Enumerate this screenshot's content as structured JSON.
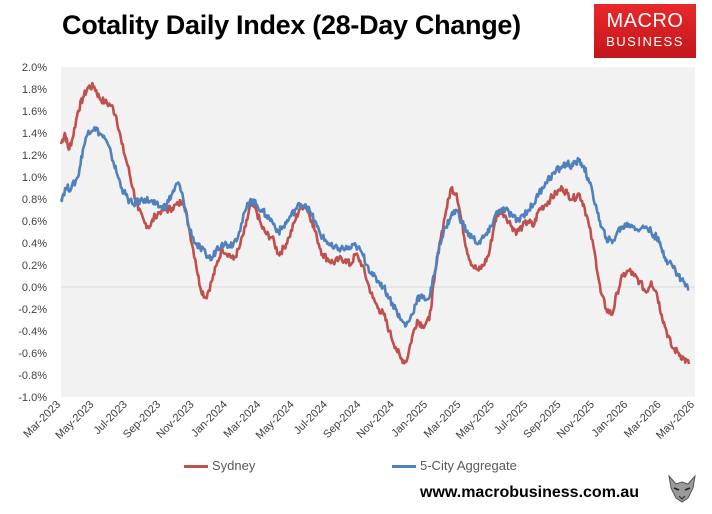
{
  "header": {
    "title": "Cotality Daily Index (28-Day Change)",
    "logo_line1": "MACRO",
    "logo_line2": "BUSINESS"
  },
  "footer": {
    "website": "www.macrobusiness.com.au",
    "mascot_icon": "wolf-icon"
  },
  "colors": {
    "sydney": "#c0504d",
    "aggregate": "#4f81bd",
    "plot_bg": "#f2f2f2",
    "logo": "#d81f26"
  },
  "chart_data": {
    "type": "line",
    "title": "Cotality Daily Index (28-Day Change)",
    "xlabel": "",
    "ylabel": "",
    "x_range": [
      "2023-03-01",
      "2026-05-01"
    ],
    "xticks": [
      "Mar-2023",
      "May-2023",
      "Jul-2023",
      "Sep-2023",
      "Nov-2023",
      "Jan-2024",
      "Mar-2024",
      "May-2024",
      "Jul-2024",
      "Sep-2024",
      "Nov-2024",
      "Jan-2025",
      "Mar-2025",
      "May-2025",
      "Jul-2025",
      "Sep-2025",
      "Nov-2025",
      "Jan-2026",
      "Mar-2026",
      "May-2026"
    ],
    "ylim": [
      -1.0,
      2.0
    ],
    "yticks": [
      "2.0%",
      "1.8%",
      "1.6%",
      "1.4%",
      "1.2%",
      "1.0%",
      "0.8%",
      "0.6%",
      "0.4%",
      "0.2%",
      "0.0%",
      "-0.2%",
      "-0.4%",
      "-0.6%",
      "-0.8%",
      "-1.0%"
    ],
    "y_unit": "%",
    "grid": false,
    "legend_position": "bottom",
    "series": [
      {
        "name": "Sydney",
        "color": "#c0504d",
        "points": [
          [
            "2023-03-01",
            1.3
          ],
          [
            "2023-03-08",
            1.4
          ],
          [
            "2023-03-15",
            1.25
          ],
          [
            "2023-03-22",
            1.35
          ],
          [
            "2023-04-01",
            1.6
          ],
          [
            "2023-04-10",
            1.72
          ],
          [
            "2023-04-20",
            1.82
          ],
          [
            "2023-05-01",
            1.82
          ],
          [
            "2023-05-10",
            1.72
          ],
          [
            "2023-05-20",
            1.68
          ],
          [
            "2023-06-01",
            1.65
          ],
          [
            "2023-06-10",
            1.55
          ],
          [
            "2023-06-20",
            1.3
          ],
          [
            "2023-07-01",
            1.1
          ],
          [
            "2023-07-10",
            0.9
          ],
          [
            "2023-07-20",
            0.7
          ],
          [
            "2023-08-01",
            0.58
          ],
          [
            "2023-08-10",
            0.55
          ],
          [
            "2023-08-20",
            0.65
          ],
          [
            "2023-09-01",
            0.7
          ],
          [
            "2023-09-10",
            0.7
          ],
          [
            "2023-09-20",
            0.72
          ],
          [
            "2023-10-01",
            0.75
          ],
          [
            "2023-10-10",
            0.8
          ],
          [
            "2023-10-20",
            0.55
          ],
          [
            "2023-11-01",
            0.25
          ],
          [
            "2023-11-10",
            0.0
          ],
          [
            "2023-11-20",
            -0.1
          ],
          [
            "2023-12-01",
            0.05
          ],
          [
            "2023-12-10",
            0.2
          ],
          [
            "2023-12-20",
            0.35
          ],
          [
            "2024-01-01",
            0.3
          ],
          [
            "2024-01-10",
            0.25
          ],
          [
            "2024-01-20",
            0.35
          ],
          [
            "2024-02-01",
            0.55
          ],
          [
            "2024-02-10",
            0.75
          ],
          [
            "2024-02-20",
            0.7
          ],
          [
            "2024-03-01",
            0.55
          ],
          [
            "2024-03-10",
            0.48
          ],
          [
            "2024-03-20",
            0.45
          ],
          [
            "2024-04-01",
            0.3
          ],
          [
            "2024-04-10",
            0.35
          ],
          [
            "2024-04-20",
            0.45
          ],
          [
            "2024-05-01",
            0.6
          ],
          [
            "2024-05-10",
            0.72
          ],
          [
            "2024-05-20",
            0.75
          ],
          [
            "2024-06-01",
            0.6
          ],
          [
            "2024-06-10",
            0.45
          ],
          [
            "2024-06-20",
            0.3
          ],
          [
            "2024-07-01",
            0.25
          ],
          [
            "2024-07-10",
            0.22
          ],
          [
            "2024-07-20",
            0.25
          ],
          [
            "2024-08-01",
            0.25
          ],
          [
            "2024-08-10",
            0.2
          ],
          [
            "2024-08-20",
            0.3
          ],
          [
            "2024-09-01",
            0.2
          ],
          [
            "2024-09-10",
            0.05
          ],
          [
            "2024-09-20",
            -0.1
          ],
          [
            "2024-10-01",
            -0.2
          ],
          [
            "2024-10-10",
            -0.25
          ],
          [
            "2024-10-20",
            -0.4
          ],
          [
            "2024-11-01",
            -0.55
          ],
          [
            "2024-11-10",
            -0.65
          ],
          [
            "2024-11-20",
            -0.68
          ],
          [
            "2024-12-01",
            -0.45
          ],
          [
            "2024-12-10",
            -0.3
          ],
          [
            "2024-12-20",
            -0.35
          ],
          [
            "2025-01-01",
            -0.3
          ],
          [
            "2025-01-10",
            0.05
          ],
          [
            "2025-01-20",
            0.4
          ],
          [
            "2025-02-01",
            0.7
          ],
          [
            "2025-02-10",
            0.9
          ],
          [
            "2025-02-20",
            0.85
          ],
          [
            "2025-03-01",
            0.6
          ],
          [
            "2025-03-10",
            0.35
          ],
          [
            "2025-03-20",
            0.2
          ],
          [
            "2025-04-01",
            0.15
          ],
          [
            "2025-04-10",
            0.2
          ],
          [
            "2025-04-20",
            0.3
          ],
          [
            "2025-05-01",
            0.6
          ],
          [
            "2025-05-10",
            0.7
          ],
          [
            "2025-05-20",
            0.65
          ],
          [
            "2025-06-01",
            0.55
          ],
          [
            "2025-06-10",
            0.5
          ],
          [
            "2025-06-20",
            0.55
          ],
          [
            "2025-07-01",
            0.6
          ],
          [
            "2025-07-10",
            0.55
          ],
          [
            "2025-07-20",
            0.7
          ],
          [
            "2025-08-01",
            0.75
          ],
          [
            "2025-08-10",
            0.8
          ],
          [
            "2025-08-20",
            0.85
          ],
          [
            "2025-09-01",
            0.9
          ],
          [
            "2025-09-10",
            0.85
          ],
          [
            "2025-09-20",
            0.8
          ],
          [
            "2025-10-01",
            0.85
          ],
          [
            "2025-10-10",
            0.75
          ],
          [
            "2025-10-20",
            0.55
          ],
          [
            "2025-11-01",
            0.25
          ],
          [
            "2025-11-10",
            -0.05
          ],
          [
            "2025-11-20",
            -0.2
          ],
          [
            "2025-12-01",
            -0.25
          ],
          [
            "2025-12-10",
            -0.05
          ],
          [
            "2025-12-20",
            0.1
          ],
          [
            "2026-01-01",
            0.15
          ],
          [
            "2026-01-10",
            0.1
          ],
          [
            "2026-01-20",
            0.05
          ],
          [
            "2026-02-01",
            -0.05
          ],
          [
            "2026-02-10",
            0.05
          ],
          [
            "2026-02-20",
            -0.05
          ],
          [
            "2026-03-01",
            -0.25
          ],
          [
            "2026-03-10",
            -0.4
          ],
          [
            "2026-03-20",
            -0.55
          ],
          [
            "2026-04-01",
            -0.6
          ],
          [
            "2026-04-10",
            -0.65
          ],
          [
            "2026-04-20",
            -0.7
          ]
        ]
      },
      {
        "name": "5-City Aggregate",
        "color": "#4f81bd",
        "points": [
          [
            "2023-03-01",
            0.8
          ],
          [
            "2023-03-10",
            0.9
          ],
          [
            "2023-03-20",
            0.9
          ],
          [
            "2023-04-01",
            1.0
          ],
          [
            "2023-04-10",
            1.25
          ],
          [
            "2023-04-20",
            1.42
          ],
          [
            "2023-05-01",
            1.45
          ],
          [
            "2023-05-10",
            1.4
          ],
          [
            "2023-05-20",
            1.35
          ],
          [
            "2023-06-01",
            1.2
          ],
          [
            "2023-06-10",
            1.05
          ],
          [
            "2023-06-20",
            0.9
          ],
          [
            "2023-07-01",
            0.8
          ],
          [
            "2023-07-10",
            0.75
          ],
          [
            "2023-07-20",
            0.78
          ],
          [
            "2023-08-01",
            0.8
          ],
          [
            "2023-08-10",
            0.78
          ],
          [
            "2023-08-20",
            0.75
          ],
          [
            "2023-09-01",
            0.72
          ],
          [
            "2023-09-10",
            0.75
          ],
          [
            "2023-09-20",
            0.85
          ],
          [
            "2023-10-01",
            0.95
          ],
          [
            "2023-10-10",
            0.8
          ],
          [
            "2023-10-20",
            0.55
          ],
          [
            "2023-11-01",
            0.4
          ],
          [
            "2023-11-10",
            0.35
          ],
          [
            "2023-11-20",
            0.3
          ],
          [
            "2023-12-01",
            0.25
          ],
          [
            "2023-12-10",
            0.35
          ],
          [
            "2023-12-20",
            0.4
          ],
          [
            "2024-01-01",
            0.38
          ],
          [
            "2024-01-10",
            0.4
          ],
          [
            "2024-01-20",
            0.5
          ],
          [
            "2024-02-01",
            0.7
          ],
          [
            "2024-02-10",
            0.8
          ],
          [
            "2024-02-20",
            0.75
          ],
          [
            "2024-03-01",
            0.7
          ],
          [
            "2024-03-10",
            0.65
          ],
          [
            "2024-03-20",
            0.6
          ],
          [
            "2024-04-01",
            0.5
          ],
          [
            "2024-04-10",
            0.55
          ],
          [
            "2024-04-20",
            0.62
          ],
          [
            "2024-05-01",
            0.7
          ],
          [
            "2024-05-10",
            0.75
          ],
          [
            "2024-05-20",
            0.75
          ],
          [
            "2024-06-01",
            0.65
          ],
          [
            "2024-06-10",
            0.55
          ],
          [
            "2024-06-20",
            0.45
          ],
          [
            "2024-07-01",
            0.4
          ],
          [
            "2024-07-10",
            0.35
          ],
          [
            "2024-07-20",
            0.35
          ],
          [
            "2024-08-01",
            0.35
          ],
          [
            "2024-08-10",
            0.35
          ],
          [
            "2024-08-20",
            0.38
          ],
          [
            "2024-09-01",
            0.3
          ],
          [
            "2024-09-10",
            0.2
          ],
          [
            "2024-09-20",
            0.1
          ],
          [
            "2024-10-01",
            0.05
          ],
          [
            "2024-10-10",
            0.0
          ],
          [
            "2024-10-20",
            -0.1
          ],
          [
            "2024-11-01",
            -0.2
          ],
          [
            "2024-11-10",
            -0.3
          ],
          [
            "2024-11-20",
            -0.35
          ],
          [
            "2024-12-01",
            -0.25
          ],
          [
            "2024-12-10",
            -0.1
          ],
          [
            "2024-12-20",
            -0.1
          ],
          [
            "2025-01-01",
            -0.1
          ],
          [
            "2025-01-10",
            0.1
          ],
          [
            "2025-01-20",
            0.4
          ],
          [
            "2025-02-01",
            0.55
          ],
          [
            "2025-02-10",
            0.65
          ],
          [
            "2025-02-20",
            0.7
          ],
          [
            "2025-03-01",
            0.6
          ],
          [
            "2025-03-10",
            0.5
          ],
          [
            "2025-03-20",
            0.45
          ],
          [
            "2025-04-01",
            0.4
          ],
          [
            "2025-04-10",
            0.45
          ],
          [
            "2025-04-20",
            0.5
          ],
          [
            "2025-05-01",
            0.65
          ],
          [
            "2025-05-10",
            0.7
          ],
          [
            "2025-05-20",
            0.7
          ],
          [
            "2025-06-01",
            0.65
          ],
          [
            "2025-06-10",
            0.6
          ],
          [
            "2025-06-20",
            0.65
          ],
          [
            "2025-07-01",
            0.7
          ],
          [
            "2025-07-10",
            0.75
          ],
          [
            "2025-07-20",
            0.85
          ],
          [
            "2025-08-01",
            0.95
          ],
          [
            "2025-08-10",
            1.0
          ],
          [
            "2025-08-20",
            1.05
          ],
          [
            "2025-09-01",
            1.1
          ],
          [
            "2025-09-10",
            1.12
          ],
          [
            "2025-09-20",
            1.1
          ],
          [
            "2025-10-01",
            1.15
          ],
          [
            "2025-10-10",
            1.1
          ],
          [
            "2025-10-20",
            0.95
          ],
          [
            "2025-11-01",
            0.75
          ],
          [
            "2025-11-10",
            0.55
          ],
          [
            "2025-11-20",
            0.45
          ],
          [
            "2025-12-01",
            0.4
          ],
          [
            "2025-12-10",
            0.5
          ],
          [
            "2025-12-20",
            0.55
          ],
          [
            "2026-01-01",
            0.57
          ],
          [
            "2026-01-10",
            0.55
          ],
          [
            "2026-01-20",
            0.52
          ],
          [
            "2026-02-01",
            0.55
          ],
          [
            "2026-02-10",
            0.5
          ],
          [
            "2026-02-20",
            0.45
          ],
          [
            "2026-03-01",
            0.35
          ],
          [
            "2026-03-10",
            0.25
          ],
          [
            "2026-03-20",
            0.2
          ],
          [
            "2026-04-01",
            0.1
          ],
          [
            "2026-04-10",
            0.05
          ],
          [
            "2026-04-20",
            -0.02
          ]
        ]
      }
    ]
  }
}
